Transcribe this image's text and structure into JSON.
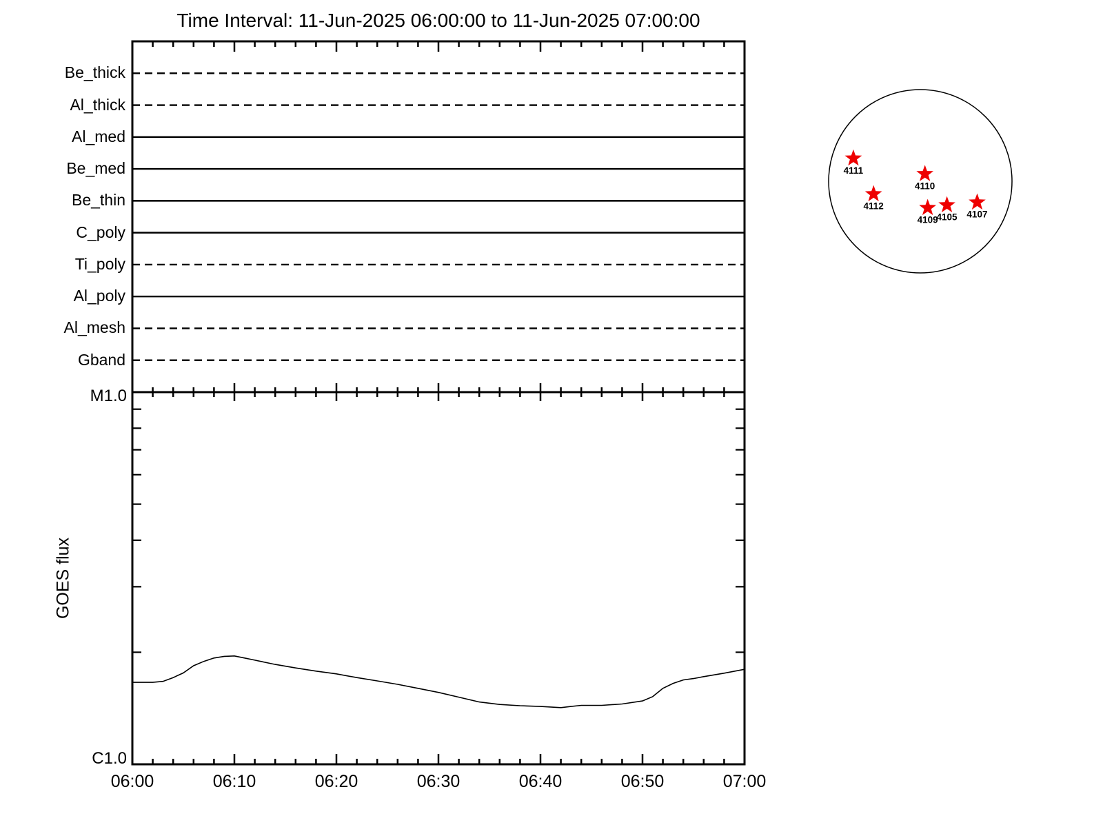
{
  "title": "Time Interval: 11-Jun-2025 06:00:00 to 11-Jun-2025 07:00:00",
  "chart_data": [
    {
      "type": "line",
      "panel": "xrt-filter-timeline",
      "title": "",
      "xlabel": "",
      "ylabel": "",
      "x_range_minutes": [
        0,
        60
      ],
      "x_major_tick_minutes": 10,
      "x_minor_tick_minutes": 2,
      "grid": "off",
      "legend": "off",
      "categories": [
        "Be_thick",
        "Al_thick",
        "Al_med",
        "Be_med",
        "Be_thin",
        "C_poly",
        "Ti_poly",
        "Al_poly",
        "Al_mesh",
        "Gband"
      ],
      "series": [
        {
          "name": "Be_thick",
          "linestyle": "dashed",
          "coverage_minutes": [
            0,
            60
          ]
        },
        {
          "name": "Al_thick",
          "linestyle": "dashed",
          "coverage_minutes": [
            0,
            60
          ]
        },
        {
          "name": "Al_med",
          "linestyle": "solid",
          "coverage_minutes": [
            0,
            60
          ]
        },
        {
          "name": "Be_med",
          "linestyle": "solid",
          "coverage_minutes": [
            0,
            60
          ]
        },
        {
          "name": "Be_thin",
          "linestyle": "solid",
          "coverage_minutes": [
            0,
            60
          ]
        },
        {
          "name": "C_poly",
          "linestyle": "solid",
          "coverage_minutes": [
            0,
            60
          ]
        },
        {
          "name": "Ti_poly",
          "linestyle": "dashed",
          "coverage_minutes": [
            0,
            60
          ]
        },
        {
          "name": "Al_poly",
          "linestyle": "solid",
          "coverage_minutes": [
            0,
            60
          ]
        },
        {
          "name": "Al_mesh",
          "linestyle": "dashed",
          "coverage_minutes": [
            0,
            60
          ]
        },
        {
          "name": "Gband",
          "linestyle": "dashed",
          "coverage_minutes": [
            0,
            60
          ]
        }
      ]
    },
    {
      "type": "line",
      "panel": "goes-flux",
      "title": "",
      "xlabel": "",
      "ylabel": "GOES flux",
      "yscale": "log",
      "ylim": [
        1e-06,
        1e-05
      ],
      "ytick_labels": {
        "top": "M1.0",
        "bottom": "C1.0"
      },
      "x_tick_labels": [
        "06:00",
        "06:10",
        "06:20",
        "06:30",
        "06:40",
        "06:50",
        "07:00"
      ],
      "x_major_tick_minutes": 10,
      "x_minor_tick_minutes": 2,
      "grid": "off",
      "legend": "off",
      "series": [
        {
          "name": "GOES flux",
          "x_minutes": [
            0,
            2,
            3,
            4,
            5,
            6,
            7,
            8,
            9,
            10,
            11,
            12,
            14,
            16,
            18,
            20,
            22,
            24,
            26,
            28,
            30,
            32,
            34,
            36,
            38,
            40,
            42,
            43,
            44,
            46,
            48,
            50,
            51,
            52,
            53,
            54,
            55,
            56,
            58,
            60
          ],
          "flux_wm2": [
            1.66e-06,
            1.66e-06,
            1.67e-06,
            1.71e-06,
            1.76e-06,
            1.84e-06,
            1.89e-06,
            1.93e-06,
            1.95e-06,
            1.955e-06,
            1.93e-06,
            1.905e-06,
            1.855e-06,
            1.815e-06,
            1.78e-06,
            1.75e-06,
            1.71e-06,
            1.675e-06,
            1.64e-06,
            1.6e-06,
            1.56e-06,
            1.515e-06,
            1.47e-06,
            1.448e-06,
            1.437e-06,
            1.43e-06,
            1.42e-06,
            1.43e-06,
            1.44e-06,
            1.44e-06,
            1.452e-06,
            1.48e-06,
            1.52e-06,
            1.6e-06,
            1.65e-06,
            1.685e-06,
            1.7e-06,
            1.72e-06,
            1.757e-06,
            1.8e-06
          ]
        }
      ]
    }
  ],
  "sun_map": {
    "marker": "star",
    "marker_color": "#ee0000",
    "active_regions": [
      {
        "label": "4111",
        "disk_x": -0.73,
        "disk_y": -0.25
      },
      {
        "label": "4110",
        "disk_x": 0.05,
        "disk_y": -0.08
      },
      {
        "label": "4112",
        "disk_x": -0.51,
        "disk_y": 0.14
      },
      {
        "label": "4109",
        "disk_x": 0.08,
        "disk_y": 0.29
      },
      {
        "label": "4105",
        "disk_x": 0.29,
        "disk_y": 0.26
      },
      {
        "label": "4107",
        "disk_x": 0.62,
        "disk_y": 0.23
      }
    ]
  }
}
